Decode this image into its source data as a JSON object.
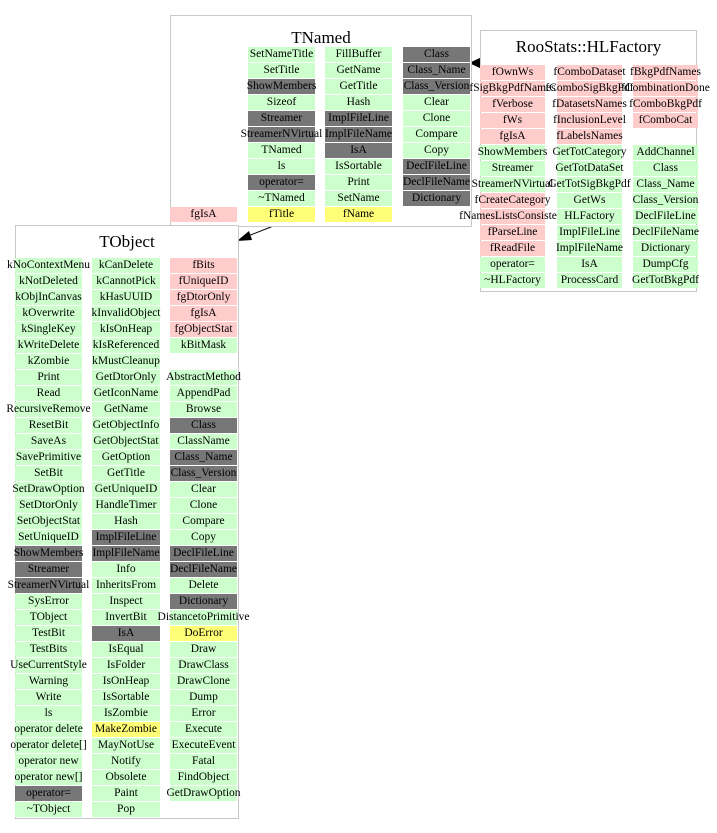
{
  "colors": {
    "public": "#ccffcc",
    "private": "#ffcccc",
    "dark": "#777777",
    "protected": "#ffff77"
  },
  "classes": [
    {
      "name": "TNamed",
      "columns": [
        [
          [
            "SetNameTitle",
            "g"
          ],
          [
            "SetTitle",
            "g"
          ],
          [
            "ShowMembers",
            "d"
          ],
          [
            "Sizeof",
            "g"
          ],
          [
            "Streamer",
            "d"
          ],
          [
            "StreamerNVirtual",
            "d"
          ],
          [
            "TNamed",
            "g"
          ],
          [
            "ls",
            "g"
          ],
          [
            "operator=",
            "d"
          ],
          [
            "~TNamed",
            "g"
          ],
          [
            "fTitle",
            "y"
          ]
        ],
        [
          [
            "FillBuffer",
            "g"
          ],
          [
            "GetName",
            "g"
          ],
          [
            "GetTitle",
            "g"
          ],
          [
            "Hash",
            "g"
          ],
          [
            "ImplFileLine",
            "d"
          ],
          [
            "ImplFileName",
            "d"
          ],
          [
            "IsA",
            "d"
          ],
          [
            "IsSortable",
            "g"
          ],
          [
            "Print",
            "g"
          ],
          [
            "SetName",
            "g"
          ],
          [
            "fName",
            "y"
          ]
        ],
        [
          [
            "Class",
            "d"
          ],
          [
            "Class_Name",
            "d"
          ],
          [
            "Class_Version",
            "d"
          ],
          [
            "Clear",
            "g"
          ],
          [
            "Clone",
            "g"
          ],
          [
            "Compare",
            "g"
          ],
          [
            "Copy",
            "g"
          ],
          [
            "DeclFileLine",
            "d"
          ],
          [
            "DeclFileName",
            "d"
          ],
          [
            "Dictionary",
            "d"
          ]
        ],
        [
          [
            "",
            "e"
          ],
          [
            "",
            "e"
          ],
          [
            "",
            "e"
          ],
          [
            "",
            "e"
          ],
          [
            "",
            "e"
          ],
          [
            "",
            "e"
          ],
          [
            "",
            "e"
          ],
          [
            "",
            "e"
          ],
          [
            "",
            "e"
          ],
          [
            "",
            "e"
          ],
          [
            "fgIsA",
            "p"
          ]
        ]
      ]
    },
    {
      "name": "RooStats::HLFactory",
      "columns": [
        [
          [
            "fOwnWs",
            "p"
          ],
          [
            "fSigBkgPdfNames",
            "p"
          ],
          [
            "fVerbose",
            "p"
          ],
          [
            "fWs",
            "p"
          ],
          [
            "fgIsA",
            "p"
          ],
          [
            "ShowMembers",
            "g"
          ],
          [
            "Streamer",
            "g"
          ],
          [
            "StreamerNVirtual",
            "g"
          ],
          [
            "fCreateCategory",
            "p"
          ],
          [
            "fNamesListsConsistent",
            "p"
          ],
          [
            "fParseLine",
            "p"
          ],
          [
            "fReadFile",
            "p"
          ],
          [
            "operator=",
            "g"
          ],
          [
            "~HLFactory",
            "g"
          ]
        ],
        [
          [
            "fComboDataset",
            "p"
          ],
          [
            "fComboSigBkgPdf",
            "p"
          ],
          [
            "fDatasetsNames",
            "p"
          ],
          [
            "fInclusionLevel",
            "p"
          ],
          [
            "fLabelsNames",
            "p"
          ],
          [
            "GetTotCategory",
            "g"
          ],
          [
            "GetTotDataSet",
            "g"
          ],
          [
            "GetTotSigBkgPdf",
            "g"
          ],
          [
            "GetWs",
            "g"
          ],
          [
            "HLFactory",
            "g"
          ],
          [
            "ImplFileLine",
            "g"
          ],
          [
            "ImplFileName",
            "g"
          ],
          [
            "IsA",
            "g"
          ],
          [
            "ProcessCard",
            "g"
          ]
        ],
        [
          [
            "fBkgPdfNames",
            "p"
          ],
          [
            "fCombinationDone",
            "p"
          ],
          [
            "fComboBkgPdf",
            "p"
          ],
          [
            "fComboCat",
            "p"
          ],
          [
            "",
            "e"
          ],
          [
            "AddChannel",
            "g"
          ],
          [
            "Class",
            "g"
          ],
          [
            "Class_Name",
            "g"
          ],
          [
            "Class_Version",
            "g"
          ],
          [
            "DeclFileLine",
            "g"
          ],
          [
            "DeclFileName",
            "g"
          ],
          [
            "Dictionary",
            "g"
          ],
          [
            "DumpCfg",
            "g"
          ],
          [
            "GetTotBkgPdf",
            "g"
          ]
        ]
      ]
    },
    {
      "name": "TObject",
      "columns": [
        [
          [
            "kNoContextMenu",
            "g"
          ],
          [
            "kNotDeleted",
            "g"
          ],
          [
            "kObjInCanvas",
            "g"
          ],
          [
            "kOverwrite",
            "g"
          ],
          [
            "kSingleKey",
            "g"
          ],
          [
            "kWriteDelete",
            "g"
          ],
          [
            "kZombie",
            "g"
          ],
          [
            "Print",
            "g"
          ],
          [
            "Read",
            "g"
          ],
          [
            "RecursiveRemove",
            "g"
          ],
          [
            "ResetBit",
            "g"
          ],
          [
            "SaveAs",
            "g"
          ],
          [
            "SavePrimitive",
            "g"
          ],
          [
            "SetBit",
            "g"
          ],
          [
            "SetDrawOption",
            "g"
          ],
          [
            "SetDtorOnly",
            "g"
          ],
          [
            "SetObjectStat",
            "g"
          ],
          [
            "SetUniqueID",
            "g"
          ],
          [
            "ShowMembers",
            "d"
          ],
          [
            "Streamer",
            "d"
          ],
          [
            "StreamerNVirtual",
            "d"
          ],
          [
            "SysError",
            "g"
          ],
          [
            "TObject",
            "g"
          ],
          [
            "TestBit",
            "g"
          ],
          [
            "TestBits",
            "g"
          ],
          [
            "UseCurrentStyle",
            "g"
          ],
          [
            "Warning",
            "g"
          ],
          [
            "Write",
            "g"
          ],
          [
            "ls",
            "g"
          ],
          [
            "operator delete",
            "g"
          ],
          [
            "operator delete[]",
            "g"
          ],
          [
            "operator new",
            "g"
          ],
          [
            "operator new[]",
            "g"
          ],
          [
            "operator=",
            "d"
          ],
          [
            "~TObject",
            "g"
          ]
        ],
        [
          [
            "kCanDelete",
            "g"
          ],
          [
            "kCannotPick",
            "g"
          ],
          [
            "kHasUUID",
            "g"
          ],
          [
            "kInvalidObject",
            "g"
          ],
          [
            "kIsOnHeap",
            "g"
          ],
          [
            "kIsReferenced",
            "g"
          ],
          [
            "kMustCleanup",
            "g"
          ],
          [
            "GetDtorOnly",
            "g"
          ],
          [
            "GetIconName",
            "g"
          ],
          [
            "GetName",
            "g"
          ],
          [
            "GetObjectInfo",
            "g"
          ],
          [
            "GetObjectStat",
            "g"
          ],
          [
            "GetOption",
            "g"
          ],
          [
            "GetTitle",
            "g"
          ],
          [
            "GetUniqueID",
            "g"
          ],
          [
            "HandleTimer",
            "g"
          ],
          [
            "Hash",
            "g"
          ],
          [
            "ImplFileLine",
            "d"
          ],
          [
            "ImplFileName",
            "d"
          ],
          [
            "Info",
            "g"
          ],
          [
            "InheritsFrom",
            "g"
          ],
          [
            "Inspect",
            "g"
          ],
          [
            "InvertBit",
            "g"
          ],
          [
            "IsA",
            "d"
          ],
          [
            "IsEqual",
            "g"
          ],
          [
            "IsFolder",
            "g"
          ],
          [
            "IsOnHeap",
            "g"
          ],
          [
            "IsSortable",
            "g"
          ],
          [
            "IsZombie",
            "g"
          ],
          [
            "MakeZombie",
            "y"
          ],
          [
            "MayNotUse",
            "g"
          ],
          [
            "Notify",
            "g"
          ],
          [
            "Obsolete",
            "g"
          ],
          [
            "Paint",
            "g"
          ],
          [
            "Pop",
            "g"
          ]
        ],
        [
          [
            "fBits",
            "p"
          ],
          [
            "fUniqueID",
            "p"
          ],
          [
            "fgDtorOnly",
            "p"
          ],
          [
            "fgIsA",
            "p"
          ],
          [
            "fgObjectStat",
            "p"
          ],
          [
            "kBitMask",
            "g"
          ],
          [
            "",
            "e"
          ],
          [
            "AbstractMethod",
            "g"
          ],
          [
            "AppendPad",
            "g"
          ],
          [
            "Browse",
            "g"
          ],
          [
            "Class",
            "d"
          ],
          [
            "ClassName",
            "g"
          ],
          [
            "Class_Name",
            "d"
          ],
          [
            "Class_Version",
            "d"
          ],
          [
            "Clear",
            "g"
          ],
          [
            "Clone",
            "g"
          ],
          [
            "Compare",
            "g"
          ],
          [
            "Copy",
            "g"
          ],
          [
            "DeclFileLine",
            "d"
          ],
          [
            "DeclFileName",
            "d"
          ],
          [
            "Delete",
            "g"
          ],
          [
            "Dictionary",
            "d"
          ],
          [
            "DistancetoPrimitive",
            "g"
          ],
          [
            "DoError",
            "y"
          ],
          [
            "Draw",
            "g"
          ],
          [
            "DrawClass",
            "g"
          ],
          [
            "DrawClone",
            "g"
          ],
          [
            "Dump",
            "g"
          ],
          [
            "Error",
            "g"
          ],
          [
            "Execute",
            "g"
          ],
          [
            "ExecuteEvent",
            "g"
          ],
          [
            "Fatal",
            "g"
          ],
          [
            "FindObject",
            "g"
          ],
          [
            "GetDrawOption",
            "g"
          ]
        ]
      ]
    }
  ]
}
